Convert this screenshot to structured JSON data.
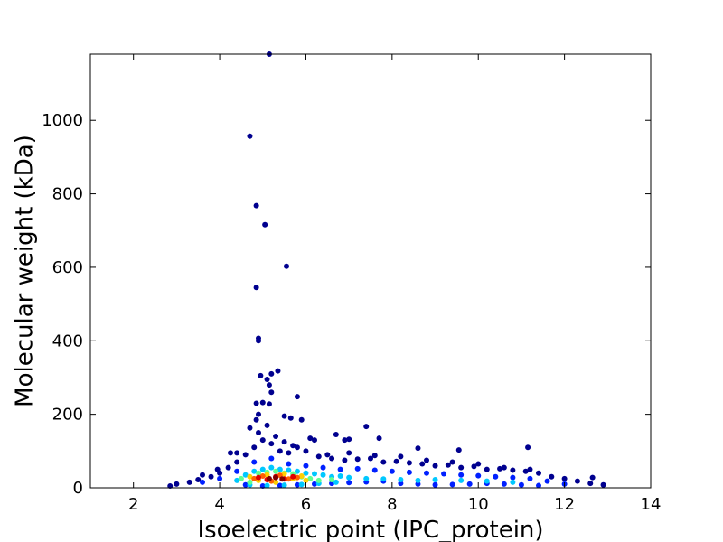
{
  "chart_data": {
    "type": "scatter",
    "xlabel": "Isoelectric point (IPC_protein)",
    "ylabel": "Molecular weight (kDa)",
    "xlim": [
      1,
      14
    ],
    "xticks": [
      2,
      4,
      6,
      8,
      10,
      12,
      14
    ],
    "ylim": [
      0,
      1180
    ],
    "yticks": [
      0,
      200,
      400,
      600,
      800,
      1000
    ],
    "grid": false,
    "series": [
      {
        "color": "#00008f",
        "x": [
          5.15,
          4.7,
          4.85,
          5.05,
          5.55,
          4.85,
          4.9,
          4.9,
          5.35,
          5.2,
          4.95,
          5.1,
          5.15,
          5.8,
          5.2,
          5.0,
          4.85,
          5.15,
          4.9,
          5.5,
          5.65,
          5.9,
          4.85,
          7.4,
          4.7,
          6.7,
          11.15,
          9.55,
          8.6,
          12.65,
          2.85,
          6.2,
          6.9,
          7.0,
          7.7,
          4.4,
          4.25,
          3.95,
          3.6,
          3.0,
          3.3,
          3.5,
          3.8,
          4.0,
          4.2,
          4.4,
          4.6,
          4.8,
          5.0,
          5.2,
          5.4,
          5.6,
          5.8,
          6.0,
          6.3,
          6.6,
          6.9,
          7.2,
          7.5,
          7.8,
          8.1,
          8.4,
          8.7,
          9.0,
          9.3,
          9.6,
          9.9,
          10.2,
          10.5,
          10.8,
          11.1,
          11.4,
          11.7,
          12.0,
          12.3,
          12.6,
          12.9,
          4.9,
          5.1,
          5.3,
          5.5,
          5.7,
          6.1,
          6.5,
          7.0,
          7.6,
          8.2,
          8.8,
          9.4,
          10.0,
          10.6,
          11.2
        ],
        "values": [
          1180,
          957,
          768,
          716,
          603,
          545,
          407,
          400,
          318,
          310,
          305,
          295,
          280,
          248,
          260,
          232,
          230,
          228,
          200,
          195,
          190,
          185,
          185,
          167,
          163,
          145,
          110,
          103,
          108,
          28,
          5,
          130,
          130,
          132,
          135,
          95,
          95,
          50,
          35,
          10,
          15,
          22,
          30,
          40,
          55,
          70,
          90,
          110,
          130,
          120,
          100,
          95,
          110,
          100,
          85,
          80,
          75,
          78,
          80,
          70,
          72,
          68,
          65,
          60,
          62,
          55,
          58,
          50,
          52,
          48,
          45,
          40,
          30,
          25,
          18,
          12,
          8,
          150,
          170,
          140,
          125,
          115,
          135,
          90,
          95,
          88,
          85,
          75,
          70,
          65,
          55,
          50
        ]
      },
      {
        "color": "#0020ff",
        "x": [
          3.6,
          4.0,
          4.4,
          4.8,
          5.2,
          5.6,
          6.0,
          6.4,
          6.8,
          7.2,
          7.6,
          8.0,
          8.4,
          8.8,
          9.2,
          9.6,
          10.0,
          10.4,
          10.8,
          11.2,
          11.6,
          12.0,
          4.6,
          5.0,
          5.4,
          5.8,
          6.2,
          6.6,
          7.0,
          7.4,
          7.8,
          8.2,
          8.6,
          9.0,
          9.4,
          9.8,
          10.2,
          10.6,
          11.0,
          11.4
        ],
        "values": [
          15,
          25,
          45,
          70,
          80,
          65,
          60,
          55,
          50,
          52,
          48,
          45,
          42,
          40,
          38,
          35,
          33,
          30,
          28,
          25,
          18,
          10,
          8,
          5,
          6,
          8,
          10,
          12,
          14,
          16,
          18,
          12,
          10,
          8,
          9,
          10,
          12,
          10,
          8,
          6
        ]
      },
      {
        "color": "#00c8ff",
        "x": [
          4.4,
          4.6,
          4.8,
          5.0,
          5.2,
          5.4,
          5.6,
          5.8,
          6.0,
          6.2,
          6.4,
          6.6,
          6.8,
          7.0,
          7.4,
          7.8,
          8.2,
          8.6,
          9.0,
          9.6,
          10.2,
          10.8,
          4.7,
          5.1,
          5.5,
          5.9,
          6.3,
          6.7
        ],
        "values": [
          20,
          35,
          45,
          50,
          55,
          50,
          48,
          45,
          40,
          38,
          35,
          30,
          32,
          28,
          25,
          24,
          22,
          20,
          22,
          20,
          18,
          15,
          8,
          6,
          7,
          9,
          12,
          15
        ]
      },
      {
        "color": "#60ff90",
        "x": [
          4.5,
          4.7,
          4.9,
          5.1,
          5.3,
          5.5,
          5.7,
          5.9,
          6.1,
          6.3,
          6.6
        ],
        "values": [
          25,
          15,
          40,
          42,
          45,
          40,
          38,
          30,
          25,
          20,
          22
        ]
      },
      {
        "color": "#ffd000",
        "x": [
          4.7,
          4.9,
          5.1,
          5.3,
          5.5,
          5.7,
          5.9,
          6.0
        ],
        "values": [
          30,
          20,
          35,
          15,
          38,
          25,
          32,
          20
        ]
      },
      {
        "color": "#ff6000",
        "x": [
          4.8,
          5.0,
          5.2,
          5.4,
          5.6,
          5.8
        ],
        "values": [
          25,
          32,
          18,
          34,
          24,
          28
        ]
      },
      {
        "color": "#e00000",
        "x": [
          4.9,
          5.1,
          5.3,
          5.5,
          5.7
        ],
        "values": [
          28,
          22,
          30,
          24,
          30
        ]
      },
      {
        "color": "#800000",
        "x": [
          5.15,
          5.3,
          5.45
        ],
        "values": [
          25,
          28,
          24
        ]
      }
    ]
  }
}
